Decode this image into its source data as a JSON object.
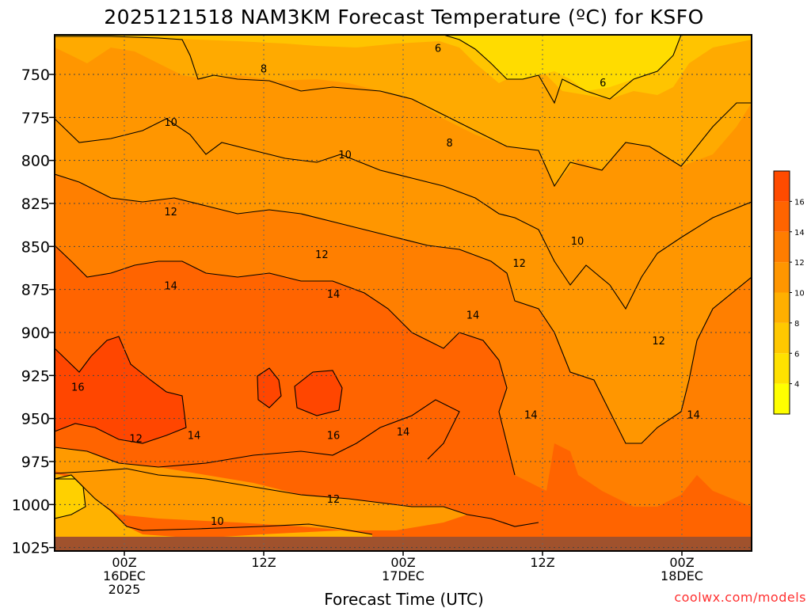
{
  "chart_data": {
    "type": "heatmap",
    "title": "2025121518 NAM3KM Forecast Temperature (ºC) for KSFO",
    "xlabel": "Forecast Time (UTC)",
    "ylabel": "",
    "credit": "coolwx.com/models",
    "y_ticks": [
      "750",
      "775",
      "800",
      "825",
      "850",
      "875",
      "900",
      "925",
      "950",
      "975",
      "1000",
      "1025"
    ],
    "y_values": [
      750,
      775,
      800,
      825,
      850,
      875,
      900,
      925,
      950,
      975,
      1000,
      1025
    ],
    "ylim": [
      1027,
      727
    ],
    "x_ticks": [
      {
        "lines": [
          "00Z",
          "16DEC",
          "2025"
        ],
        "hour": 6
      },
      {
        "lines": [
          "12Z"
        ],
        "hour": 18
      },
      {
        "lines": [
          "00Z",
          "17DEC"
        ],
        "hour": 30
      },
      {
        "lines": [
          "12Z"
        ],
        "hour": 42
      },
      {
        "lines": [
          "00Z",
          "18DEC"
        ],
        "hour": 54
      }
    ],
    "xlim": [
      0,
      60
    ],
    "grid": true,
    "colorbar": {
      "ticks": [
        "4",
        "6",
        "8",
        "10",
        "12",
        "14",
        "16"
      ],
      "tick_values": [
        4,
        6,
        8,
        10,
        12,
        14,
        16
      ],
      "range": [
        2,
        18
      ],
      "colors": [
        "#ffff00",
        "#ffe100",
        "#ffc800",
        "#ffaf00",
        "#ff9600",
        "#ff7d00",
        "#ff6400",
        "#ff4b00"
      ],
      "placement": "right"
    },
    "contour_labels": [
      {
        "text": "6",
        "hour": 33.0,
        "p": 735
      },
      {
        "text": "6",
        "hour": 47.2,
        "p": 755
      },
      {
        "text": "8",
        "hour": 18.0,
        "p": 747
      },
      {
        "text": "8",
        "hour": 34.0,
        "p": 790
      },
      {
        "text": "10",
        "hour": 10.0,
        "p": 778
      },
      {
        "text": "10",
        "hour": 25.0,
        "p": 797
      },
      {
        "text": "10",
        "hour": 45.0,
        "p": 847
      },
      {
        "text": "12",
        "hour": 10.0,
        "p": 830
      },
      {
        "text": "12",
        "hour": 23.0,
        "p": 855
      },
      {
        "text": "12",
        "hour": 40.0,
        "p": 860
      },
      {
        "text": "12",
        "hour": 52.0,
        "p": 905
      },
      {
        "text": "12",
        "hour": 7.0,
        "p": 962
      },
      {
        "text": "14",
        "hour": 10.0,
        "p": 873
      },
      {
        "text": "14",
        "hour": 24.0,
        "p": 878
      },
      {
        "text": "14",
        "hour": 36.0,
        "p": 890
      },
      {
        "text": "14",
        "hour": 41.0,
        "p": 948
      },
      {
        "text": "14",
        "hour": 12.0,
        "p": 960
      },
      {
        "text": "14",
        "hour": 30.0,
        "p": 958
      },
      {
        "text": "14",
        "hour": 55.0,
        "p": 948
      },
      {
        "text": "16",
        "hour": 2.0,
        "p": 932
      },
      {
        "text": "16",
        "hour": 24.0,
        "p": 960
      },
      {
        "text": "12",
        "hour": 24.0,
        "p": 997
      },
      {
        "text": "10",
        "hour": 14.0,
        "p": 1010
      }
    ]
  }
}
